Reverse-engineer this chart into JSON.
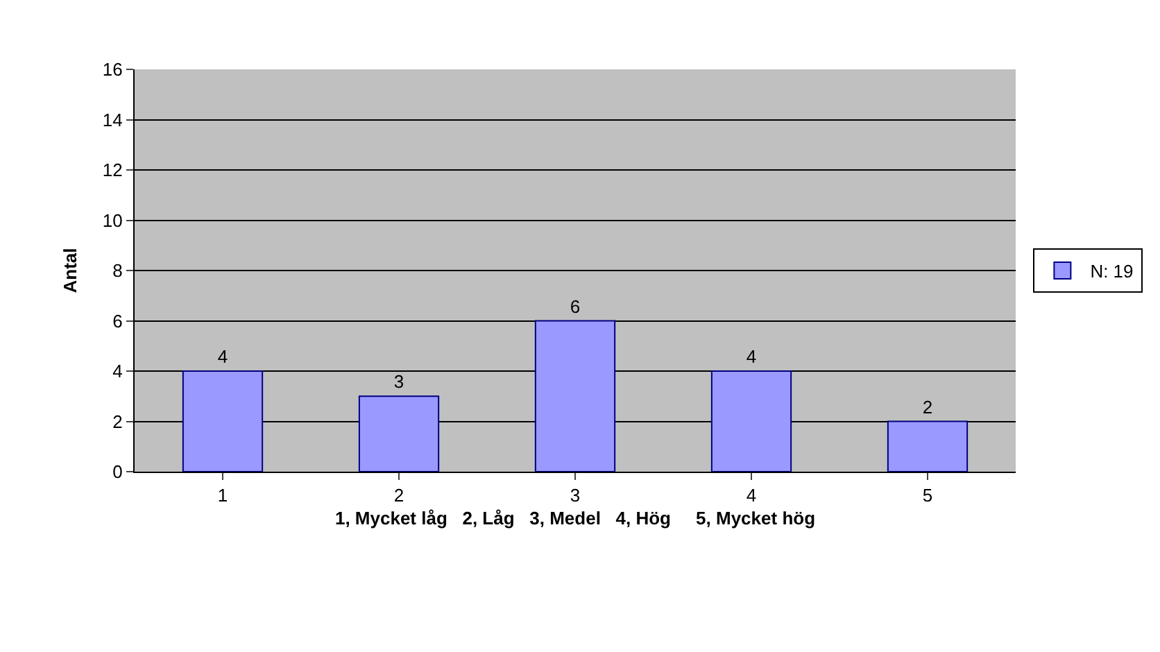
{
  "chart_data": {
    "type": "bar",
    "xlabel": "1, Mycket låg   2, Låg   3, Medel   4, Hög     5, Mycket hög",
    "ylabel": "Antal",
    "categories": [
      "1",
      "2",
      "3",
      "4",
      "5"
    ],
    "series": [
      {
        "name": "N: 19",
        "color": "#9999ff",
        "values": [
          4,
          3,
          6,
          4,
          2
        ]
      }
    ],
    "data_labels": true,
    "ylim": [
      0,
      16
    ],
    "yticks": [
      0,
      2,
      4,
      6,
      8,
      10,
      12,
      14,
      16
    ],
    "grid": "y",
    "legend": "right"
  }
}
